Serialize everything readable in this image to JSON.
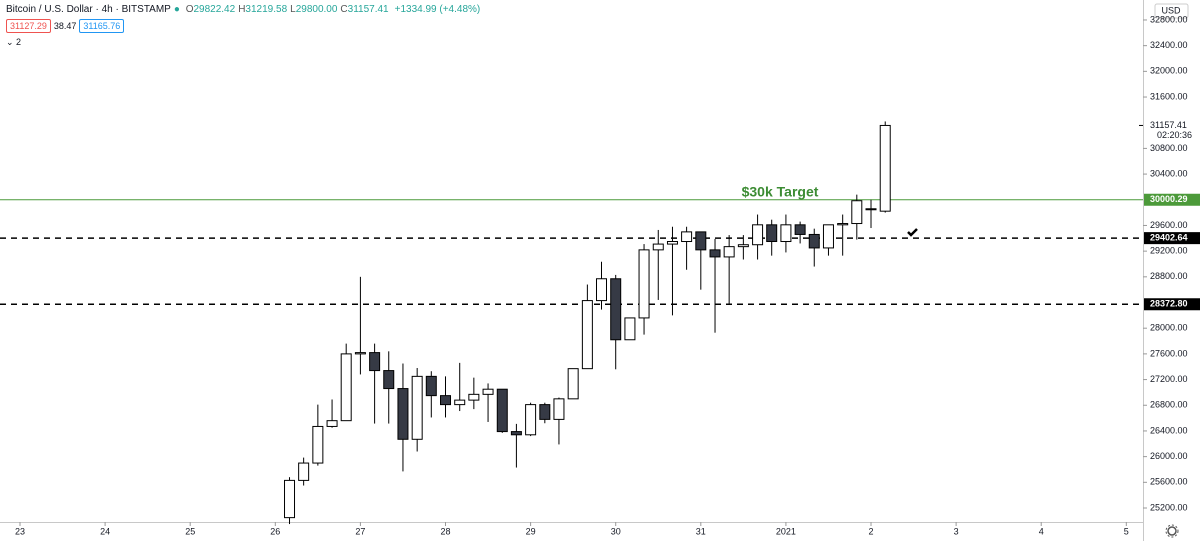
{
  "header": {
    "title": "Bitcoin / U.S. Dollar · 4h · BITSTAMP",
    "ohlc": [
      {
        "key": "O",
        "value": "29822.42"
      },
      {
        "key": "H",
        "value": "31219.58"
      },
      {
        "key": "L",
        "value": "29800.00"
      },
      {
        "key": "C",
        "value": "31157.41"
      }
    ],
    "change": "+1334.99 (+4.48%)",
    "bid": "31127.29",
    "spread": "38.47",
    "ask": "31165.76",
    "indicators": "2"
  },
  "chart_data": {
    "type": "candlestick",
    "currency": "USD",
    "annotation": "$30k Target",
    "x": [
      3.167,
      3.333,
      3.5,
      3.667,
      3.833,
      4,
      4.167,
      4.333,
      4.5,
      4.667,
      4.833,
      5,
      5.167,
      5.333,
      5.5,
      5.667,
      5.833,
      6,
      6.167,
      6.333,
      6.5,
      6.667,
      6.833,
      7,
      7.167,
      7.333,
      7.5,
      7.667,
      7.833,
      8,
      8.167,
      8.333,
      8.5,
      8.667,
      8.833,
      9,
      9.167,
      9.333,
      9.5,
      9.667,
      9.833,
      10,
      10.167
    ],
    "open": [
      25050,
      25630,
      25900,
      26470,
      26560,
      27600,
      27620,
      27340,
      27060,
      26270,
      27250,
      26950,
      26810,
      26880,
      26970,
      27050,
      26390,
      26340,
      26810,
      26580,
      26900,
      27370,
      28430,
      28770,
      27820,
      28160,
      29220,
      29310,
      29350,
      29500,
      29220,
      29110,
      29270,
      29300,
      29610,
      29350,
      29610,
      29460,
      29250,
      29610,
      29630,
      29850,
      29822.42
    ],
    "high": [
      25680,
      25985,
      26810,
      26890,
      27760,
      28800,
      27760,
      27640,
      27450,
      27380,
      27330,
      27250,
      27460,
      27230,
      27140,
      27050,
      26510,
      26840,
      26840,
      26920,
      27370,
      28680,
      29035,
      28830,
      28160,
      29310,
      29530,
      29580,
      29580,
      29500,
      29390,
      29450,
      29450,
      29770,
      29690,
      29770,
      29660,
      29550,
      29610,
      29770,
      30080,
      30000,
      31219.58
    ],
    "low": [
      24950,
      25550,
      25860,
      26450,
      26560,
      27280,
      26515,
      26515,
      25770,
      26080,
      26610,
      26610,
      26710,
      26740,
      26540,
      26370,
      25830,
      26320,
      26520,
      26190,
      26900,
      27370,
      28290,
      27360,
      27820,
      27900,
      28440,
      28200,
      28910,
      28600,
      27930,
      28370,
      29070,
      29070,
      29130,
      29180,
      29320,
      28960,
      29130,
      29130,
      29380,
      29560,
      29800
    ],
    "close": [
      25630,
      25900,
      26470,
      26560,
      27600,
      27620,
      27340,
      27060,
      26270,
      27250,
      26950,
      26810,
      26880,
      26970,
      27050,
      26390,
      26340,
      26810,
      26580,
      26900,
      27370,
      28430,
      28770,
      27820,
      28160,
      29220,
      29310,
      29350,
      29500,
      29220,
      29110,
      29270,
      29300,
      29610,
      29350,
      29610,
      29460,
      29250,
      29610,
      29630,
      29985,
      29860,
      31157.41
    ],
    "up_color": "#ffffff",
    "down_color": "#363a45",
    "wick_color": "#000000",
    "xlim": [
      -0.235,
      13.196
    ],
    "xticks": [
      {
        "value": 0,
        "label": "23"
      },
      {
        "value": 1,
        "label": "24"
      },
      {
        "value": 2,
        "label": "25"
      },
      {
        "value": 3,
        "label": "26"
      },
      {
        "value": 4,
        "label": "27"
      },
      {
        "value": 5,
        "label": "28"
      },
      {
        "value": 6,
        "label": "29"
      },
      {
        "value": 7,
        "label": "30"
      },
      {
        "value": 8,
        "label": "31"
      },
      {
        "value": 9,
        "label": "2021"
      },
      {
        "value": 10,
        "label": "2"
      },
      {
        "value": 11,
        "label": "3"
      },
      {
        "value": 12,
        "label": "4"
      },
      {
        "value": 13,
        "label": "5"
      }
    ],
    "ylim": [
      24982,
      33111
    ],
    "yticks": [
      {
        "value": 32800,
        "label": "32800.00"
      },
      {
        "value": 32400,
        "label": "32400.00"
      },
      {
        "value": 32000,
        "label": "32000.00"
      },
      {
        "value": 31600,
        "label": "31600.00"
      },
      {
        "value": 30800,
        "label": "30800.00"
      },
      {
        "value": 30400,
        "label": "30400.00"
      },
      {
        "value": 29600,
        "label": "29600.00"
      },
      {
        "value": 29200,
        "label": "29200.00"
      },
      {
        "value": 28800,
        "label": "28800.00"
      },
      {
        "value": 28000,
        "label": "28000.00"
      },
      {
        "value": 27600,
        "label": "27600.00"
      },
      {
        "value": 27200,
        "label": "27200.00"
      },
      {
        "value": 26800,
        "label": "26800.00"
      },
      {
        "value": 26400,
        "label": "26400.00"
      },
      {
        "value": 26000,
        "label": "26000.00"
      },
      {
        "value": 25600,
        "label": "25600.00"
      },
      {
        "value": 25200,
        "label": "25200.00"
      }
    ],
    "levels": [
      {
        "value": 30000.29,
        "label": "30000.29",
        "color": "#4c9a3a",
        "dashed": false
      },
      {
        "value": 29402.64,
        "label": "29402.64",
        "color": "#000000",
        "dashed": true
      },
      {
        "value": 28372.8,
        "label": "28372.80",
        "color": "#000000",
        "dashed": true
      }
    ],
    "last_price": {
      "value": 31157.41,
      "label": "31157.41",
      "countdown": "02:20:36"
    },
    "grid": false
  }
}
